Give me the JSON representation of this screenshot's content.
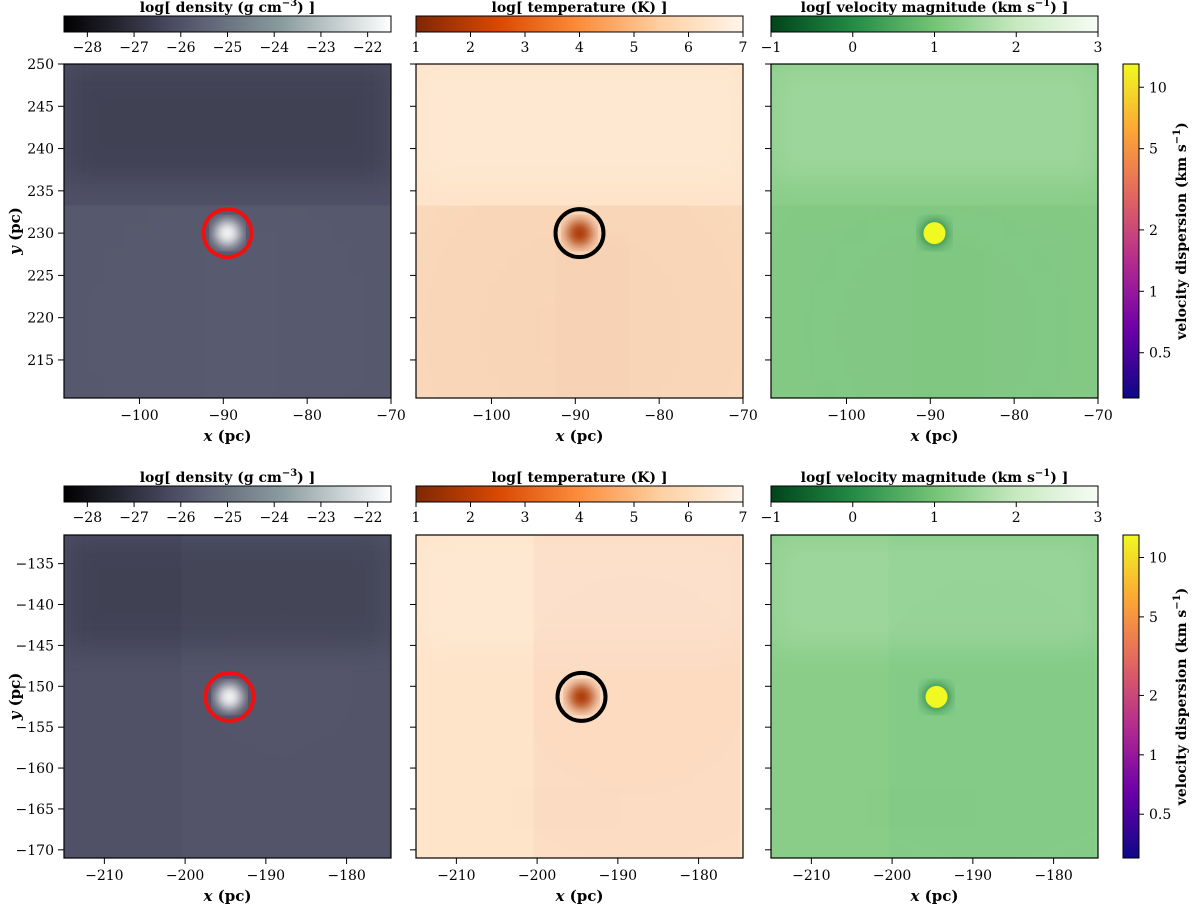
{
  "chart_data": {
    "type": "heatmap",
    "rows": [
      {
        "xlabel": "x (pc)",
        "ylabel": "y (pc)",
        "xlim": [
          -109,
          -70
        ],
        "ylim": [
          210.5,
          250
        ],
        "xticks": [
          -100,
          -90,
          -80,
          -70
        ],
        "xtick_labels": [
          "−100",
          "−90",
          "−80",
          "−70"
        ],
        "yticks": [
          215,
          220,
          225,
          230,
          235,
          240,
          245,
          250
        ],
        "ytick_labels": [
          "215",
          "220",
          "225",
          "230",
          "235",
          "240",
          "245",
          "250"
        ],
        "marker": {
          "x": -89.5,
          "y": 230
        }
      },
      {
        "xlabel": "x (pc)",
        "ylabel": "y (pc)",
        "xlim": [
          -215,
          -174.5
        ],
        "ylim": [
          -171,
          -131.5
        ],
        "xticks": [
          -210,
          -200,
          -190,
          -180
        ],
        "xtick_labels": [
          "−210",
          "−200",
          "−190",
          "−180"
        ],
        "yticks": [
          -170,
          -165,
          -160,
          -155,
          -150,
          -145,
          -140,
          -135
        ],
        "ytick_labels": [
          "−170",
          "−165",
          "−160",
          "−155",
          "−150",
          "−145",
          "−140",
          "−135"
        ],
        "marker": {
          "x": -194.5,
          "y": -151.3
        }
      }
    ],
    "fields": [
      {
        "name": "log[ density (g cm^-3) ]",
        "colorbar_label": "log[ density (g cm",
        "colorbar_label_sup": "−3",
        "colorbar_label_end": ") ]",
        "range": [
          -28.5,
          -21.5
        ],
        "ticks": [
          -28,
          -27,
          -26,
          -25,
          -24,
          -23,
          -22
        ],
        "tick_labels": [
          "−28",
          "−27",
          "−26",
          "−25",
          "−24",
          "−23",
          "−22"
        ],
        "colormap": [
          "#000000",
          "#4b4b63",
          "#8a9c9f",
          "#ffffff"
        ],
        "marker_style": "red-ring",
        "marker_color": "#ee1111"
      },
      {
        "name": "log[ temperature (K) ]",
        "colorbar_label": "log[ temperature (K) ]",
        "colorbar_label_sup": "",
        "colorbar_label_end": "",
        "range": [
          1,
          7
        ],
        "ticks": [
          1,
          2,
          3,
          4,
          5,
          6,
          7
        ],
        "tick_labels": [
          "1",
          "2",
          "3",
          "4",
          "5",
          "6",
          "7"
        ],
        "colormap": [
          "#7f2704",
          "#d94801",
          "#fd8d3c",
          "#fdd0a2",
          "#fff5eb"
        ],
        "marker_style": "black-ring",
        "marker_color": "#000000"
      },
      {
        "name": "log[ velocity magnitude (km s^-1) ]",
        "colorbar_label": "log[ velocity magnitude (km s",
        "colorbar_label_sup": "−1",
        "colorbar_label_end": ") ]",
        "range": [
          -1,
          3
        ],
        "ticks": [
          -1,
          0,
          1,
          2,
          3
        ],
        "tick_labels": [
          "−1",
          "0",
          "1",
          "2",
          "3"
        ],
        "colormap": [
          "#00441b",
          "#238b45",
          "#74c476",
          "#c7e9c0",
          "#f7fcf5"
        ],
        "marker_style": "filled-dot",
        "marker_color": "#f0f921"
      }
    ],
    "velocity_dispersion_colorbar": {
      "label": "velocity dispersion (km s",
      "label_sup": "−1",
      "label_end": ")",
      "scale": "log",
      "range": [
        0.3,
        13
      ],
      "ticks": [
        0.5,
        1,
        2,
        5,
        10
      ],
      "tick_labels": [
        "0.5",
        "1",
        "2",
        "5",
        "10"
      ],
      "colormap": [
        "#0d0887",
        "#6a00a8",
        "#b12a90",
        "#e16462",
        "#fca636",
        "#f0f921"
      ],
      "marker_value": 10.5
    }
  }
}
